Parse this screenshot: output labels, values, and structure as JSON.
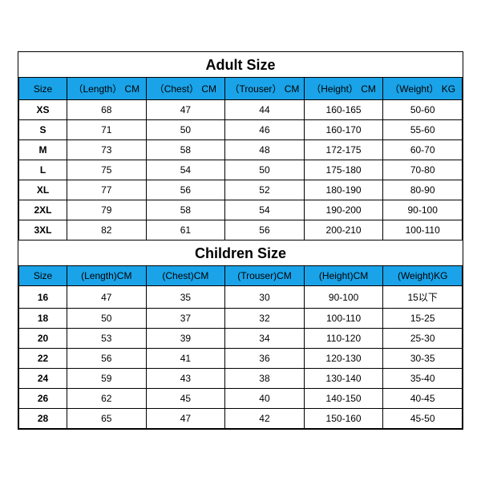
{
  "colors": {
    "header_bg": "#1aa3e8",
    "border": "#000000",
    "text": "#000000",
    "bg": "#ffffff"
  },
  "fonts": {
    "title_size": 18,
    "cell_size": 12
  },
  "adult": {
    "title": "Adult Size",
    "columns": [
      "Size",
      "（Length） CM",
      "（Chest） CM",
      "（Trouser） CM",
      "（Height） CM",
      "（Weight） KG"
    ],
    "rows": [
      [
        "XS",
        "68",
        "47",
        "44",
        "160-165",
        "50-60"
      ],
      [
        "S",
        "71",
        "50",
        "46",
        "160-170",
        "55-60"
      ],
      [
        "M",
        "73",
        "58",
        "48",
        "172-175",
        "60-70"
      ],
      [
        "L",
        "75",
        "54",
        "50",
        "175-180",
        "70-80"
      ],
      [
        "XL",
        "77",
        "56",
        "52",
        "180-190",
        "80-90"
      ],
      [
        "2XL",
        "79",
        "58",
        "54",
        "190-200",
        "90-100"
      ],
      [
        "3XL",
        "82",
        "61",
        "56",
        "200-210",
        "100-110"
      ]
    ]
  },
  "children": {
    "title": "Children Size",
    "columns": [
      "Size",
      "(Length)CM",
      "(Chest)CM",
      "(Trouser)CM",
      "(Height)CM",
      "(Weight)KG"
    ],
    "rows": [
      [
        "16",
        "47",
        "35",
        "30",
        "90-100",
        "15以下"
      ],
      [
        "18",
        "50",
        "37",
        "32",
        "100-110",
        "15-25"
      ],
      [
        "20",
        "53",
        "39",
        "34",
        "110-120",
        "25-30"
      ],
      [
        "22",
        "56",
        "41",
        "36",
        "120-130",
        "30-35"
      ],
      [
        "24",
        "59",
        "43",
        "38",
        "130-140",
        "35-40"
      ],
      [
        "26",
        "62",
        "45",
        "40",
        "140-150",
        "40-45"
      ],
      [
        "28",
        "65",
        "47",
        "42",
        "150-160",
        "45-50"
      ]
    ]
  }
}
